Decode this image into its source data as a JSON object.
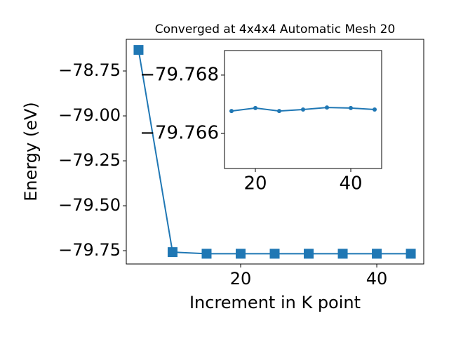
{
  "chart_data": [
    {
      "type": "line",
      "title": "Converged at 4x4x4 Automatic Mesh 20",
      "xlabel": "Increment in K point",
      "ylabel": "Energy (eV)",
      "x": [
        5,
        10,
        15,
        20,
        25,
        30,
        35,
        40,
        45
      ],
      "series": [
        {
          "color": "#1f77b4",
          "marker": "square",
          "values": [
            -78.633,
            -79.758,
            -79.767,
            -79.767,
            -79.767,
            -79.767,
            -79.767,
            -79.767,
            -79.767
          ]
        }
      ],
      "xlim": [
        3.2,
        46.9
      ],
      "ylim": [
        -79.824,
        -78.574
      ],
      "xticks": [
        20,
        40
      ],
      "yticks": [
        {
          "value": -78.75,
          "label": "−78.75"
        },
        {
          "value": -79.0,
          "label": "−79.00"
        },
        {
          "value": -79.25,
          "label": "−79.25"
        },
        {
          "value": -79.5,
          "label": "−79.50"
        },
        {
          "value": -79.75,
          "label": "−79.75"
        }
      ]
    },
    {
      "type": "line",
      "x": [
        15,
        20,
        25,
        30,
        35,
        40,
        45
      ],
      "series": [
        {
          "color": "#1f77b4",
          "marker": "circle",
          "values": [
            -79.76677,
            -79.76687,
            -79.76677,
            -79.76682,
            -79.76689,
            -79.76687,
            -79.76682
          ]
        }
      ],
      "xlim": [
        13.53,
        46.47
      ],
      "ylim": [
        -79.7648,
        -79.76884
      ],
      "xticks": [
        20,
        40
      ],
      "yticks": [
        {
          "value": -79.768,
          "label": "−79.768"
        },
        {
          "value": -79.766,
          "label": "−79.766"
        }
      ]
    }
  ]
}
